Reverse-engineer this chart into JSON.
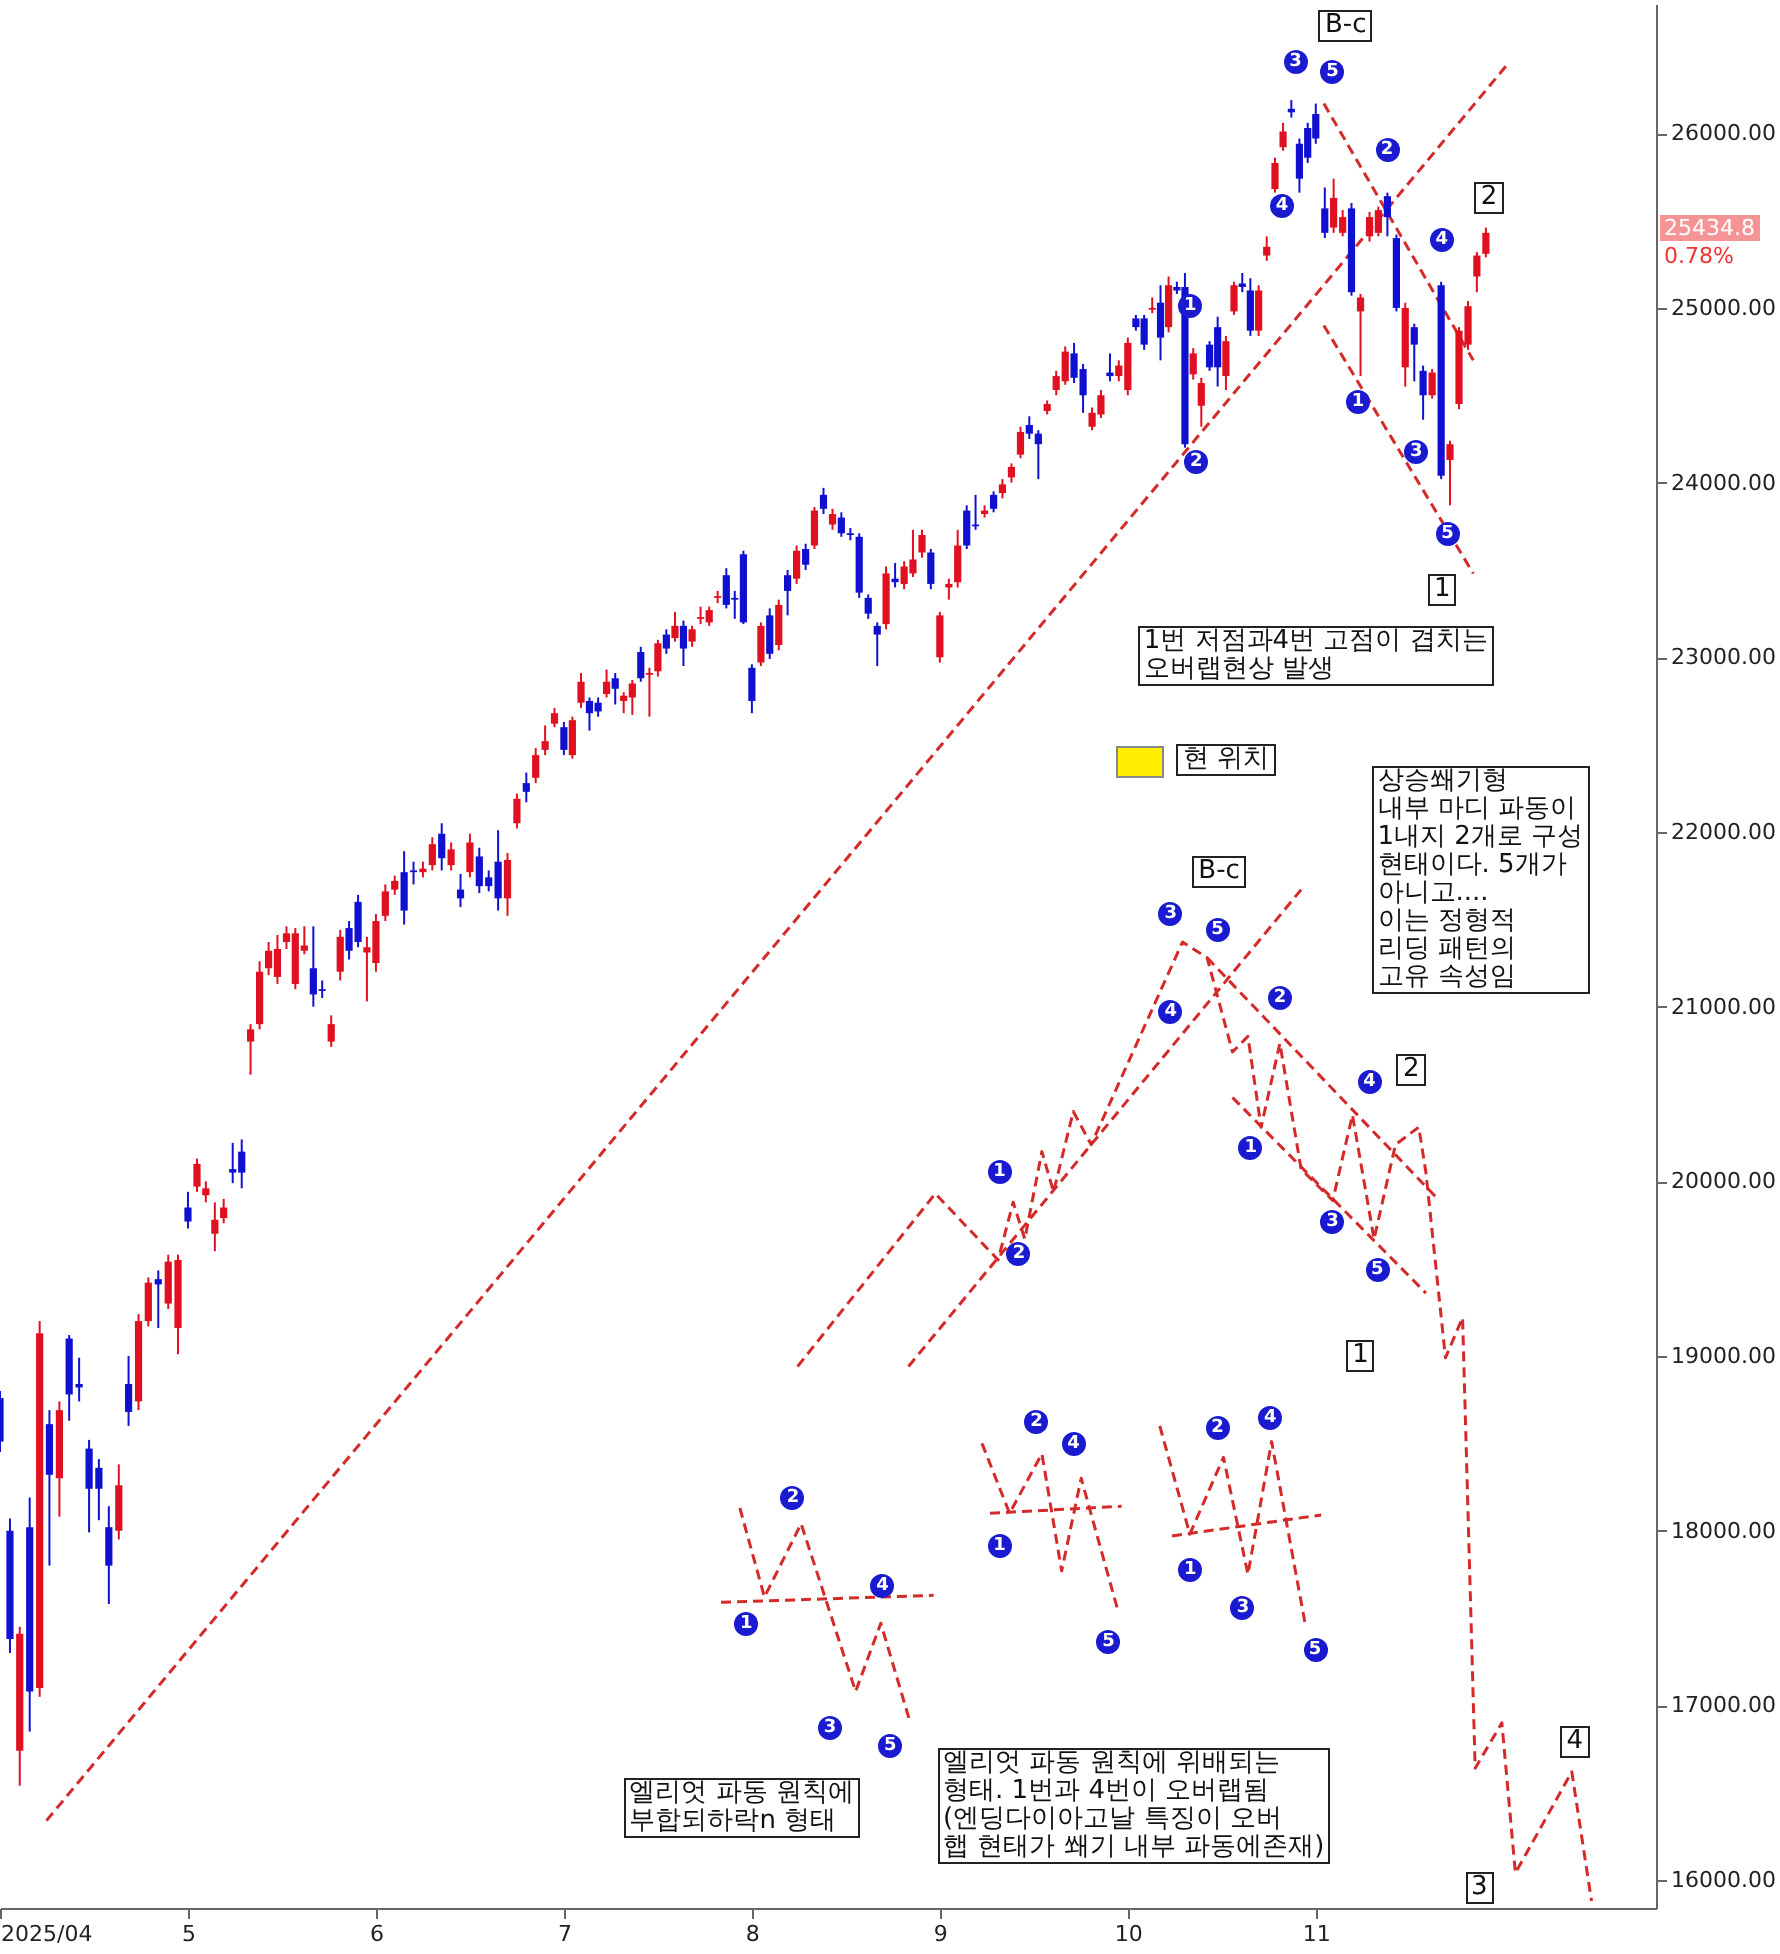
{
  "chart_data": {
    "type": "candlestick",
    "x": [
      4,
      4.053,
      4.105,
      4.158,
      4.211,
      4.263,
      4.316,
      4.368,
      4.421,
      4.474,
      4.526,
      4.579,
      4.632,
      4.684,
      4.737,
      4.789,
      4.842,
      4.895,
      4.947,
      5,
      5.048,
      5.095,
      5.143,
      5.19,
      5.238,
      5.286,
      5.333,
      5.381,
      5.429,
      5.476,
      5.524,
      5.571,
      5.619,
      5.667,
      5.714,
      5.762,
      5.81,
      5.857,
      5.905,
      5.952,
      6,
      6.05,
      6.1,
      6.15,
      6.2,
      6.25,
      6.3,
      6.35,
      6.4,
      6.45,
      6.5,
      6.55,
      6.6,
      6.65,
      6.7,
      6.75,
      6.8,
      6.85,
      6.9,
      6.95,
      7,
      7.045,
      7.091,
      7.136,
      7.182,
      7.227,
      7.273,
      7.318,
      7.364,
      7.409,
      7.455,
      7.5,
      7.545,
      7.591,
      7.636,
      7.682,
      7.727,
      7.773,
      7.818,
      7.864,
      7.909,
      7.955,
      8,
      8.048,
      8.095,
      8.143,
      8.19,
      8.238,
      8.286,
      8.333,
      8.381,
      8.429,
      8.476,
      8.524,
      8.571,
      8.619,
      8.667,
      8.714,
      8.762,
      8.81,
      8.857,
      8.905,
      8.952,
      9,
      9.048,
      9.095,
      9.143,
      9.19,
      9.238,
      9.286,
      9.333,
      9.381,
      9.429,
      9.476,
      9.524,
      9.571,
      9.619,
      9.667,
      9.714,
      9.762,
      9.81,
      9.857,
      9.905,
      9.952,
      10,
      10.043,
      10.087,
      10.13,
      10.174,
      10.217,
      10.261,
      10.304,
      10.348,
      10.391,
      10.435,
      10.478,
      10.522,
      10.565,
      10.609,
      10.652,
      10.696,
      10.739,
      10.783,
      10.826,
      10.87,
      10.913,
      10.957,
      11,
      11.048,
      11.095,
      11.143,
      11.19,
      11.238,
      11.286,
      11.333,
      11.381,
      11.429,
      11.476,
      11.524,
      11.571,
      11.619,
      11.667,
      11.714,
      11.762,
      11.81,
      11.857,
      11.905
    ],
    "ohlc": [
      [
        18760,
        18800,
        18450,
        18510
      ],
      [
        18000,
        18070,
        17300,
        17380
      ],
      [
        16740,
        17450,
        16540,
        17410
      ],
      [
        18020,
        18190,
        16850,
        17080
      ],
      [
        17100,
        19200,
        17050,
        19130
      ],
      [
        18610,
        18690,
        17800,
        18320
      ],
      [
        18300,
        18740,
        18080,
        18690
      ],
      [
        19100,
        19120,
        18630,
        18780
      ],
      [
        18840,
        18990,
        18740,
        18820
      ],
      [
        18470,
        18520,
        17990,
        18240
      ],
      [
        18360,
        18410,
        18060,
        18240
      ],
      [
        18020,
        18140,
        17580,
        17800
      ],
      [
        18000,
        18380,
        17950,
        18260
      ],
      [
        18840,
        19000,
        18600,
        18680
      ],
      [
        18740,
        19240,
        18690,
        19200
      ],
      [
        19200,
        19450,
        19170,
        19420
      ],
      [
        19440,
        19490,
        19160,
        19410
      ],
      [
        19300,
        19580,
        19270,
        19540
      ],
      [
        19160,
        19580,
        19010,
        19550
      ],
      [
        19850,
        19940,
        19730,
        19770
      ],
      [
        19970,
        20130,
        19940,
        20100
      ],
      [
        19920,
        20000,
        19880,
        19960
      ],
      [
        19700,
        19880,
        19600,
        19780
      ],
      [
        19790,
        19900,
        19760,
        19850
      ],
      [
        20070,
        20220,
        19990,
        20050
      ],
      [
        20170,
        20240,
        19960,
        20050
      ],
      [
        20800,
        20900,
        20610,
        20870
      ],
      [
        20900,
        21260,
        20870,
        21200
      ],
      [
        21220,
        21370,
        21180,
        21320
      ],
      [
        21170,
        21410,
        21130,
        21330
      ],
      [
        21370,
        21460,
        21330,
        21420
      ],
      [
        21130,
        21450,
        21100,
        21420
      ],
      [
        21320,
        21460,
        21300,
        21350
      ],
      [
        21220,
        21460,
        21000,
        21070
      ],
      [
        21100,
        21150,
        21050,
        21090
      ],
      [
        20800,
        20950,
        20770,
        20900
      ],
      [
        21200,
        21440,
        21150,
        21400
      ],
      [
        21450,
        21490,
        21270,
        21320
      ],
      [
        21600,
        21640,
        21340,
        21370
      ],
      [
        21310,
        21400,
        21030,
        21340
      ],
      [
        21250,
        21530,
        21200,
        21490
      ],
      [
        21520,
        21700,
        21490,
        21660
      ],
      [
        21670,
        21750,
        21640,
        21720
      ],
      [
        21770,
        21890,
        21470,
        21550
      ],
      [
        21780,
        21830,
        21700,
        21770
      ],
      [
        21770,
        21830,
        21740,
        21790
      ],
      [
        21810,
        21970,
        21780,
        21930
      ],
      [
        21990,
        22050,
        21780,
        21850
      ],
      [
        21810,
        21940,
        21780,
        21900
      ],
      [
        21670,
        21760,
        21570,
        21620
      ],
      [
        21770,
        21990,
        21740,
        21940
      ],
      [
        21860,
        21910,
        21650,
        21690
      ],
      [
        21740,
        21780,
        21660,
        21690
      ],
      [
        21830,
        22010,
        21550,
        21620
      ],
      [
        21620,
        21880,
        21520,
        21840
      ],
      [
        22050,
        22220,
        22020,
        22190
      ],
      [
        22280,
        22340,
        22170,
        22230
      ],
      [
        22310,
        22480,
        22280,
        22440
      ],
      [
        22470,
        22610,
        22440,
        22520
      ],
      [
        22620,
        22710,
        22600,
        22680
      ],
      [
        22600,
        22630,
        22440,
        22470
      ],
      [
        22440,
        22660,
        22420,
        22640
      ],
      [
        22740,
        22910,
        22710,
        22860
      ],
      [
        22750,
        22770,
        22580,
        22680
      ],
      [
        22740,
        22770,
        22660,
        22690
      ],
      [
        22790,
        22930,
        22770,
        22860
      ],
      [
        22880,
        22910,
        22730,
        22820
      ],
      [
        22750,
        22800,
        22680,
        22780
      ],
      [
        22770,
        22870,
        22670,
        22850
      ],
      [
        23030,
        23060,
        22860,
        22880
      ],
      [
        22900,
        22940,
        22660,
        22910
      ],
      [
        22920,
        23100,
        22890,
        23080
      ],
      [
        23130,
        23160,
        23020,
        23050
      ],
      [
        23110,
        23260,
        23090,
        23180
      ],
      [
        23180,
        23210,
        22950,
        23050
      ],
      [
        23090,
        23180,
        23060,
        23160
      ],
      [
        23220,
        23290,
        23190,
        23230
      ],
      [
        23200,
        23290,
        23180,
        23270
      ],
      [
        23340,
        23380,
        23310,
        23350
      ],
      [
        23470,
        23510,
        23280,
        23300
      ],
      [
        23340,
        23380,
        23220,
        23330
      ],
      [
        23590,
        23610,
        23190,
        23200
      ],
      [
        22940,
        22960,
        22680,
        22750
      ],
      [
        22970,
        23200,
        22950,
        23180
      ],
      [
        23240,
        23280,
        22990,
        23020
      ],
      [
        23070,
        23330,
        23040,
        23300
      ],
      [
        23470,
        23500,
        23240,
        23380
      ],
      [
        23450,
        23640,
        23420,
        23610
      ],
      [
        23620,
        23650,
        23500,
        23530
      ],
      [
        23640,
        23860,
        23620,
        23840
      ],
      [
        23930,
        23970,
        23820,
        23850
      ],
      [
        23760,
        23850,
        23730,
        23820
      ],
      [
        23800,
        23830,
        23690,
        23710
      ],
      [
        23710,
        23740,
        23670,
        23700
      ],
      [
        23690,
        23710,
        23340,
        23370
      ],
      [
        23340,
        23360,
        23220,
        23250
      ],
      [
        23180,
        23200,
        22950,
        23130
      ],
      [
        23190,
        23520,
        23160,
        23480
      ],
      [
        23450,
        23540,
        23400,
        23430
      ],
      [
        23420,
        23550,
        23390,
        23520
      ],
      [
        23480,
        23730,
        23460,
        23560
      ],
      [
        23600,
        23730,
        23570,
        23700
      ],
      [
        23600,
        23620,
        23390,
        23420
      ],
      [
        23000,
        23260,
        22970,
        23240
      ],
      [
        23400,
        23450,
        23330,
        23420
      ],
      [
        23430,
        23730,
        23400,
        23640
      ],
      [
        23840,
        23870,
        23620,
        23640
      ],
      [
        23760,
        23930,
        23730,
        23750
      ],
      [
        23820,
        23870,
        23800,
        23840
      ],
      [
        23930,
        23950,
        23830,
        23850
      ],
      [
        23940,
        24020,
        23910,
        23990
      ],
      [
        24030,
        24110,
        24000,
        24090
      ],
      [
        24160,
        24320,
        24140,
        24290
      ],
      [
        24330,
        24380,
        24250,
        24280
      ],
      [
        24280,
        24300,
        24020,
        24220
      ],
      [
        24410,
        24470,
        24390,
        24450
      ],
      [
        24530,
        24640,
        24500,
        24610
      ],
      [
        24580,
        24780,
        24560,
        24750
      ],
      [
        24740,
        24800,
        24570,
        24600
      ],
      [
        24650,
        24680,
        24400,
        24500
      ],
      [
        24320,
        24430,
        24300,
        24400
      ],
      [
        24390,
        24530,
        24370,
        24500
      ],
      [
        24630,
        24740,
        24580,
        24610
      ],
      [
        24610,
        24700,
        24580,
        24670
      ],
      [
        24530,
        24830,
        24500,
        24800
      ],
      [
        24940,
        24960,
        24870,
        24890
      ],
      [
        24940,
        24960,
        24760,
        24790
      ],
      [
        24990,
        25060,
        24970,
        25000
      ],
      [
        25030,
        25130,
        24700,
        24830
      ],
      [
        24890,
        25180,
        24860,
        25130
      ],
      [
        25120,
        25150,
        25080,
        25100
      ],
      [
        25120,
        25200,
        24200,
        24220
      ],
      [
        24620,
        24770,
        24590,
        24740
      ],
      [
        24440,
        24600,
        24320,
        24570
      ],
      [
        24790,
        24810,
        24640,
        24660
      ],
      [
        24890,
        24950,
        24550,
        24660
      ],
      [
        24610,
        24840,
        24530,
        24810
      ],
      [
        24980,
        25150,
        24960,
        25130
      ],
      [
        25140,
        25200,
        25090,
        25120
      ],
      [
        25100,
        25170,
        24840,
        24870
      ],
      [
        24870,
        25130,
        24840,
        25100
      ],
      [
        25300,
        25410,
        25270,
        25350
      ],
      [
        25680,
        25860,
        25660,
        25830
      ],
      [
        25920,
        26060,
        25900,
        26010
      ],
      [
        26140,
        26190,
        26090,
        26120
      ],
      [
        25940,
        25970,
        25660,
        25740
      ],
      [
        26030,
        26060,
        25830,
        25860
      ],
      [
        26110,
        26170,
        25940,
        25970
      ],
      [
        25570,
        25690,
        25400,
        25430
      ],
      [
        25460,
        25740,
        25430,
        25630
      ],
      [
        25430,
        25560,
        25410,
        25520
      ],
      [
        25570,
        25600,
        25070,
        25090
      ],
      [
        24980,
        25080,
        24610,
        25060
      ],
      [
        25410,
        25550,
        25380,
        25520
      ],
      [
        25430,
        25580,
        25410,
        25560
      ],
      [
        25640,
        25660,
        25410,
        25520
      ],
      [
        25400,
        25420,
        24980,
        25000
      ],
      [
        24660,
        25030,
        24550,
        25000
      ],
      [
        24890,
        24910,
        24580,
        24790
      ],
      [
        24640,
        24670,
        24360,
        24500
      ],
      [
        24500,
        24650,
        24480,
        24630
      ],
      [
        25130,
        25150,
        24020,
        24040
      ],
      [
        24130,
        24240,
        23870,
        24220
      ],
      [
        24450,
        24890,
        24420,
        24870
      ],
      [
        24790,
        25040,
        24760,
        25010
      ],
      [
        25180,
        25320,
        25090,
        25300
      ],
      [
        25310,
        25460,
        25290,
        25430
      ]
    ],
    "colors": [
      "#1010d0",
      "#1010d0",
      "#e01020",
      "#1010d0",
      "#e01020",
      "#1010d0",
      "#e01020",
      "#1010d0",
      "#1010d0",
      "#1010d0",
      "#1010d0",
      "#1010d0",
      "#e01020",
      "#1010d0",
      "#e01020",
      "#e01020",
      "#1010d0",
      "#e01020",
      "#e01020",
      "#1010d0",
      "#e01020",
      "#e01020",
      "#e01020",
      "#e01020",
      "#1010d0",
      "#1010d0",
      "#e01020",
      "#e01020",
      "#e01020",
      "#e01020",
      "#e01020",
      "#e01020",
      "#e01020",
      "#1010d0",
      "#1010d0",
      "#e01020",
      "#e01020",
      "#1010d0",
      "#1010d0",
      "#e01020",
      "#e01020",
      "#e01020",
      "#e01020",
      "#1010d0",
      "#1010d0",
      "#e01020",
      "#e01020",
      "#1010d0",
      "#e01020",
      "#1010d0",
      "#e01020",
      "#1010d0",
      "#1010d0",
      "#1010d0",
      "#e01020",
      "#e01020",
      "#1010d0",
      "#e01020",
      "#e01020",
      "#e01020",
      "#1010d0",
      "#e01020",
      "#e01020",
      "#1010d0",
      "#1010d0",
      "#e01020",
      "#1010d0",
      "#e01020",
      "#e01020",
      "#1010d0",
      "#e01020",
      "#e01020",
      "#1010d0",
      "#e01020",
      "#1010d0",
      "#e01020",
      "#e01020",
      "#e01020",
      "#e01020",
      "#1010d0",
      "#1010d0",
      "#1010d0",
      "#1010d0",
      "#e01020",
      "#1010d0",
      "#e01020",
      "#1010d0",
      "#e01020",
      "#1010d0",
      "#e01020",
      "#1010d0",
      "#e01020",
      "#1010d0",
      "#1010d0",
      "#1010d0",
      "#1010d0",
      "#1010d0",
      "#e01020",
      "#1010d0",
      "#e01020",
      "#e01020",
      "#e01020",
      "#1010d0",
      "#e01020",
      "#e01020",
      "#e01020",
      "#1010d0",
      "#1010d0",
      "#e01020",
      "#1010d0",
      "#e01020",
      "#e01020",
      "#e01020",
      "#1010d0",
      "#1010d0",
      "#e01020",
      "#e01020",
      "#e01020",
      "#1010d0",
      "#1010d0",
      "#e01020",
      "#e01020",
      "#1010d0",
      "#e01020",
      "#e01020",
      "#1010d0",
      "#1010d0",
      "#e01020",
      "#1010d0",
      "#e01020",
      "#1010d0",
      "#1010d0",
      "#e01020",
      "#e01020",
      "#1010d0",
      "#1010d0",
      "#e01020",
      "#e01020",
      "#1010d0",
      "#1010d0",
      "#e01020",
      "#e01020",
      "#e01020",
      "#e01020",
      "#1010d0",
      "#1010d0",
      "#1010d0",
      "#1010d0",
      "#1010d0",
      "#e01020",
      "#e01020",
      "#1010d0",
      "#e01020",
      "#e01020",
      "#e01020",
      "#1010d0",
      "#1010d0",
      "#e01020",
      "#1010d0",
      "#1010d0",
      "#e01020",
      "#1010d0",
      "#e01020",
      "#e01020",
      "#e01020",
      "#e01020",
      "#e01020"
    ],
    "series": [
      {
        "type": "line",
        "color": "#d42a2a",
        "x": [
          4.247,
          12.024
        ],
        "values": [
          16340,
          26400
        ]
      },
      {
        "type": "line",
        "color": "#d42a2a",
        "x": [
          11.043,
          11.838
        ],
        "values": [
          26170,
          24700
        ]
      },
      {
        "type": "line",
        "color": "#d42a2a",
        "x": [
          11.043,
          11.838
        ],
        "values": [
          24900,
          23480
        ]
      },
      {
        "type": "line",
        "color": "#d42a2a",
        "x": [
          8.243,
          8.976,
          9.31,
          9.39,
          9.452,
          9.543,
          9.605,
          9.71,
          9.805,
          10.291,
          10.422,
          10.557,
          10.639,
          10.709,
          10.809,
          10.922,
          11.09,
          11.195,
          11.31,
          11.424,
          11.548,
          11.586,
          11.69,
          11.781,
          11.848,
          11.99,
          12.062,
          12.362,
          12.467
        ],
        "values": [
          18940,
          19930,
          19550,
          19880,
          19670,
          20170,
          19940,
          20400,
          20210,
          21370,
          21280,
          20740,
          20830,
          20310,
          20790,
          20070,
          19890,
          20380,
          19670,
          20210,
          20310,
          20050,
          18990,
          19220,
          16640,
          16900,
          16040,
          16620,
          15880
        ]
      },
      {
        "type": "line",
        "color": "#d42a2a",
        "x": [
          8.833,
          10.922
        ],
        "values": [
          18940,
          21670
        ]
      },
      {
        "type": "line",
        "color": "#d42a2a",
        "x": [
          10.422,
          11.648
        ],
        "values": [
          21280,
          19900
        ]
      },
      {
        "type": "line",
        "color": "#d42a2a",
        "x": [
          10.557,
          11.586
        ],
        "values": [
          20480,
          19360
        ]
      },
      {
        "type": "line",
        "color": "#d42a2a",
        "x": [
          7.936,
          8.067,
          8.262,
          8.552,
          8.686,
          8.843
        ],
        "values": [
          18130,
          17620,
          18040,
          17080,
          17470,
          16900
        ]
      },
      {
        "type": "line",
        "color": "#d42a2a",
        "x": [
          7.836,
          8.967
        ],
        "values": [
          17590,
          17630
        ]
      },
      {
        "type": "line",
        "color": "#d42a2a",
        "x": [
          9.224,
          9.371,
          9.543,
          9.648,
          9.752,
          9.948
        ],
        "values": [
          18500,
          18100,
          18440,
          17770,
          18300,
          17540
        ]
      },
      {
        "type": "line",
        "color": "#d42a2a",
        "x": [
          9.267,
          9.967
        ],
        "values": [
          18100,
          18140
        ]
      },
      {
        "type": "line",
        "color": "#d42a2a",
        "x": [
          10.17,
          10.33,
          10.509,
          10.639,
          10.765,
          10.943
        ],
        "values": [
          18600,
          17980,
          18420,
          17750,
          18510,
          17470
        ]
      },
      {
        "type": "line",
        "color": "#d42a2a",
        "x": [
          10.235,
          11.029
        ],
        "values": [
          17970,
          18090
        ]
      }
    ],
    "line_style": "dashed",
    "xlim": [
      4,
      12.81
    ],
    "xticks": [
      {
        "value": 4,
        "label": "2025/04"
      },
      5,
      6,
      7,
      8,
      9,
      10,
      11
    ],
    "ylim": [
      15840,
      26740
    ],
    "yticks": [
      {
        "value": 16000,
        "label": "16000.00"
      },
      {
        "value": 17000,
        "label": "17000.00"
      },
      {
        "value": 18000,
        "label": "18000.00"
      },
      {
        "value": 19000,
        "label": "19000.00"
      },
      {
        "value": 20000,
        "label": "20000.00"
      },
      {
        "value": 21000,
        "label": "21000.00"
      },
      {
        "value": 22000,
        "label": "22000.00"
      },
      {
        "value": 23000,
        "label": "23000.00"
      },
      {
        "value": 24000,
        "label": "24000.00"
      },
      {
        "value": 25000,
        "label": "25000.00"
      },
      {
        "value": 26000,
        "label": "26000.00"
      }
    ],
    "annotations": [
      "B-c",
      "2",
      "1",
      "1번 저점과4번 고점이 겹치는\n오버랩현상 발생",
      "현 위치",
      "상승쐐기형\n내부 마디 파동이\n1내지 2개로 구성\n현태이다. 5개가\n아니고....\n이는 정형적\n리딩 패턴의\n고유 속성임",
      "B-c",
      "2",
      "1",
      "3",
      "4",
      "엘리엇 파동 원칙에\n부합되하락n 형태",
      "엘리엇 파동 원칙에 위배되는\n형태. 1번과 4번이 오버랩됨\n(엔딩다이아고날 특징이 오버\n햅 현태가 쐐기 내부 파동에존재)",
      "3",
      "5",
      "4",
      "2",
      "1",
      "2",
      "1",
      "3",
      "5",
      "4",
      "3",
      "5",
      "4",
      "2",
      "1",
      "2",
      "1",
      "4",
      "3",
      "5",
      "2",
      "4",
      "3",
      "5",
      "1",
      "2",
      "4",
      "1",
      "5",
      "2",
      "4",
      "1",
      "3",
      "5",
      "25434.8",
      "0.78%"
    ]
  }
}
